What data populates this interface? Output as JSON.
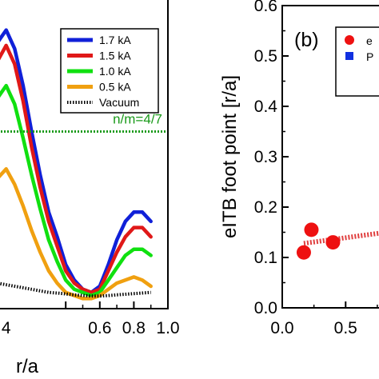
{
  "chart_data": [
    {
      "type": "line",
      "panel": "left",
      "xlabel": "r/a",
      "ylabel": "",
      "xlim": [
        0.0,
        1.0
      ],
      "ylim": [
        0.0,
        1.0
      ],
      "x_ticks": [
        ".4",
        "0.6",
        "0.8",
        "1.0"
      ],
      "x_tick_values": [
        0.4,
        0.6,
        0.8,
        1.0
      ],
      "legend_position": "top-right",
      "annotation": {
        "text": "n/m=4/7",
        "y": 0.5714
      },
      "series": [
        {
          "name": "1.7 kA",
          "color": "#1020d8",
          "style": "solid",
          "x": [
            0.0,
            0.05,
            0.1,
            0.15,
            0.2,
            0.25,
            0.3,
            0.35,
            0.4,
            0.45,
            0.5,
            0.55,
            0.6,
            0.65,
            0.7,
            0.75,
            0.8,
            0.85,
            0.9
          ],
          "y": [
            0.86,
            0.9,
            0.84,
            0.72,
            0.57,
            0.43,
            0.31,
            0.23,
            0.14,
            0.09,
            0.06,
            0.05,
            0.07,
            0.14,
            0.22,
            0.28,
            0.31,
            0.31,
            0.28
          ]
        },
        {
          "name": "1.5 kA",
          "color": "#e01818",
          "style": "solid",
          "x": [
            0.0,
            0.05,
            0.1,
            0.15,
            0.2,
            0.25,
            0.3,
            0.35,
            0.4,
            0.45,
            0.5,
            0.55,
            0.6,
            0.65,
            0.7,
            0.75,
            0.8,
            0.85,
            0.9
          ],
          "y": [
            0.8,
            0.85,
            0.79,
            0.67,
            0.52,
            0.39,
            0.28,
            0.2,
            0.12,
            0.08,
            0.06,
            0.05,
            0.06,
            0.12,
            0.18,
            0.23,
            0.26,
            0.26,
            0.23
          ]
        },
        {
          "name": "1.0 kA",
          "color": "#10e010",
          "style": "solid",
          "x": [
            0.0,
            0.05,
            0.1,
            0.15,
            0.2,
            0.25,
            0.3,
            0.35,
            0.4,
            0.45,
            0.5,
            0.55,
            0.6,
            0.65,
            0.7,
            0.75,
            0.8,
            0.85,
            0.9
          ],
          "y": [
            0.68,
            0.72,
            0.66,
            0.55,
            0.43,
            0.32,
            0.22,
            0.15,
            0.09,
            0.06,
            0.05,
            0.04,
            0.05,
            0.09,
            0.13,
            0.17,
            0.19,
            0.19,
            0.17
          ]
        },
        {
          "name": "0.5 kA",
          "color": "#f0a010",
          "style": "solid",
          "x": [
            0.0,
            0.05,
            0.1,
            0.15,
            0.2,
            0.25,
            0.3,
            0.35,
            0.4,
            0.45,
            0.5,
            0.55,
            0.6,
            0.65,
            0.7,
            0.75,
            0.8,
            0.85,
            0.9
          ],
          "y": [
            0.42,
            0.45,
            0.4,
            0.33,
            0.25,
            0.18,
            0.12,
            0.08,
            0.05,
            0.04,
            0.03,
            0.03,
            0.04,
            0.06,
            0.08,
            0.09,
            0.1,
            0.09,
            0.07
          ]
        },
        {
          "name": "Vacuum",
          "color": "#000000",
          "style": "dotted",
          "x": [
            0.0,
            0.05,
            0.1,
            0.15,
            0.2,
            0.25,
            0.3,
            0.35,
            0.4,
            0.45,
            0.5,
            0.55,
            0.6,
            0.65,
            0.7,
            0.75,
            0.8,
            0.85,
            0.9
          ],
          "y": [
            0.08,
            0.075,
            0.07,
            0.065,
            0.06,
            0.055,
            0.05,
            0.048,
            0.045,
            0.042,
            0.04,
            0.038,
            0.038,
            0.04,
            0.042,
            0.044,
            0.046,
            0.048,
            0.05
          ]
        }
      ]
    },
    {
      "type": "scatter",
      "panel": "right",
      "panel_label": "(b)",
      "xlabel": "",
      "ylabel": "eITB foot point [r/a]",
      "xlim": [
        0.0,
        0.82
      ],
      "ylim": [
        0.0,
        0.6
      ],
      "x_ticks": [
        "0.0",
        "0.5"
      ],
      "x_tick_values": [
        0.0,
        0.5
      ],
      "y_ticks": [
        "0.0",
        "0.1",
        "0.2",
        "0.3",
        "0.4",
        "0.5",
        "0.6"
      ],
      "y_tick_values": [
        0.0,
        0.1,
        0.2,
        0.3,
        0.4,
        0.5,
        0.6
      ],
      "legend_position": "top-right",
      "series": [
        {
          "name": "e",
          "color": "#ee1111",
          "marker": "circle",
          "x": [
            0.17,
            0.23,
            0.4
          ],
          "y": [
            0.11,
            0.155,
            0.13
          ]
        },
        {
          "name": "P",
          "color": "#1030e0",
          "marker": "square",
          "x": [],
          "y": []
        }
      ],
      "fit_line": {
        "color": "#e04040",
        "style": "dotted",
        "x": [
          0.17,
          0.82
        ],
        "y": [
          0.128,
          0.15
        ]
      }
    }
  ]
}
